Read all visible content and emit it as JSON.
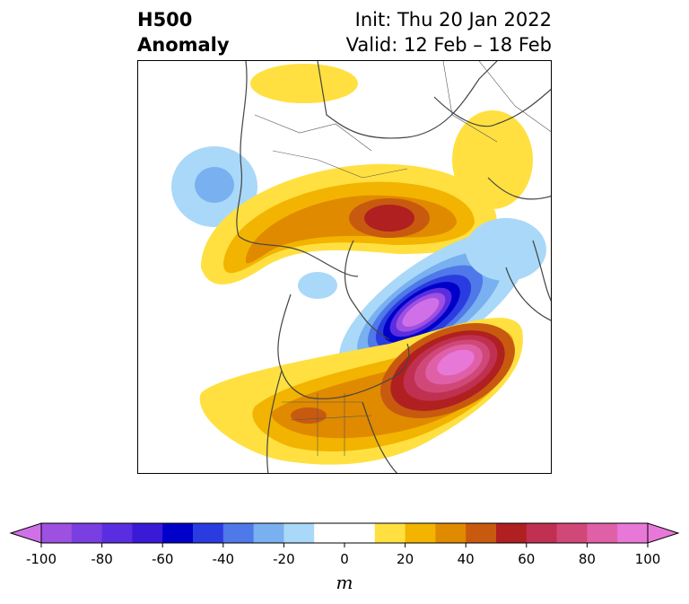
{
  "header": {
    "left_line1": "H500",
    "left_line2": "Anomaly",
    "right_line1": "Init: Thu 20 Jan 2022",
    "right_line2": "Valid: 12 Feb – 18 Feb"
  },
  "colorbar": {
    "ticks": [
      "-100",
      "-80",
      "-60",
      "-40",
      "-20",
      "0",
      "20",
      "40",
      "60",
      "80",
      "100"
    ],
    "tick_values": [
      -100,
      -80,
      -60,
      -40,
      -20,
      0,
      20,
      40,
      60,
      80,
      100
    ],
    "unit": "m",
    "levels": [
      -100,
      -90,
      -80,
      -70,
      -60,
      -50,
      -40,
      -30,
      -20,
      -10,
      10,
      20,
      30,
      40,
      50,
      60,
      70,
      80,
      90,
      100
    ],
    "colors": [
      "#9e50e0",
      "#7a3fe0",
      "#5a2ee0",
      "#3a1ad6",
      "#0000c8",
      "#2a3ce0",
      "#4f78e8",
      "#78b0f0",
      "#aad8f8",
      "#ffffff",
      "#ffe040",
      "#f2b400",
      "#e08a00",
      "#c85a10",
      "#b02020",
      "#c03050",
      "#d04878",
      "#e060a8",
      "#e878d8"
    ],
    "extend_low_color": "#d070e8",
    "extend_high_color": "#e878d8"
  }
}
